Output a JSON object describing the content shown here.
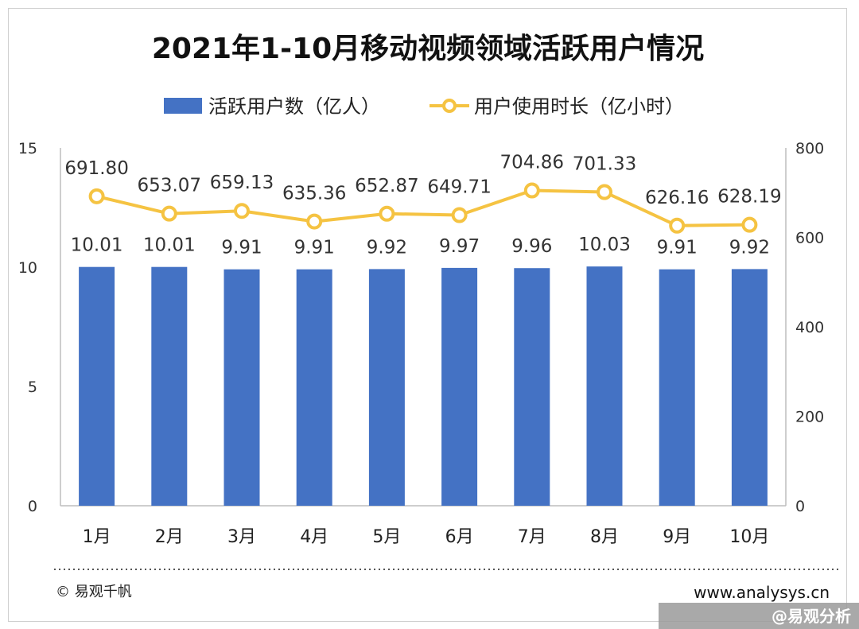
{
  "chart_data": {
    "type": "bar",
    "title": "2021年1-10月移动视频领域活跃用户情况",
    "categories": [
      "1月",
      "2月",
      "3月",
      "4月",
      "5月",
      "6月",
      "7月",
      "8月",
      "9月",
      "10月"
    ],
    "series": [
      {
        "name": "活跃用户数（亿人）",
        "type": "bar",
        "axis": "left",
        "color": "#4472C4",
        "values": [
          10.01,
          10.01,
          9.91,
          9.91,
          9.92,
          9.97,
          9.96,
          10.03,
          9.91,
          9.92
        ],
        "labels": [
          "10.01",
          "10.01",
          "9.91",
          "9.91",
          "9.92",
          "9.97",
          "9.96",
          "10.03",
          "9.91",
          "9.92"
        ]
      },
      {
        "name": "用户使用时长（亿小时）",
        "type": "line",
        "axis": "right",
        "color": "#F5C342",
        "values": [
          691.8,
          653.07,
          659.13,
          635.36,
          652.87,
          649.71,
          704.86,
          701.33,
          626.16,
          628.19
        ],
        "labels": [
          "691.80",
          "653.07",
          "659.13",
          "635.36",
          "652.87",
          "649.71",
          "704.86",
          "701.33",
          "626.16",
          "628.19"
        ]
      }
    ],
    "y_left": {
      "lim": [
        0,
        15
      ],
      "ticks": [
        "0",
        "5",
        "10",
        "15"
      ]
    },
    "y_right": {
      "lim": [
        0,
        800
      ],
      "ticks": [
        "0",
        "200",
        "400",
        "600",
        "800"
      ]
    },
    "grid": false,
    "legend": "top"
  },
  "footer": {
    "copyright": "© 易观千帆",
    "website": "www.analysys.cn",
    "watermark": "@易观分析"
  }
}
